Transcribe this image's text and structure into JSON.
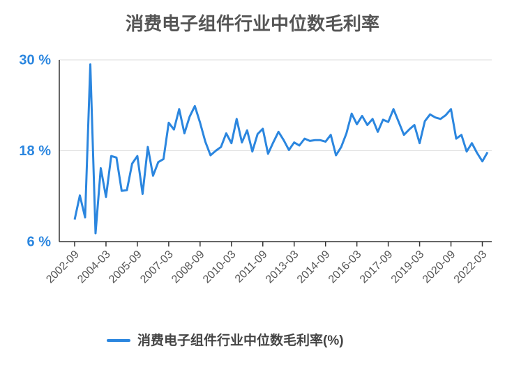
{
  "chart_data": {
    "type": "line",
    "title": "消费电子组件行业中位数毛利率",
    "categories": [
      "2002-09",
      null,
      null,
      null,
      null,
      null,
      "2004-03",
      null,
      null,
      null,
      null,
      null,
      "2005-09",
      null,
      null,
      null,
      null,
      null,
      "2007-03",
      null,
      null,
      null,
      null,
      null,
      "2008-09",
      null,
      null,
      null,
      null,
      null,
      "2010-03",
      null,
      null,
      null,
      null,
      null,
      "2011-09",
      null,
      null,
      null,
      null,
      null,
      "2013-03",
      null,
      null,
      null,
      null,
      null,
      "2014-09",
      null,
      null,
      null,
      null,
      null,
      "2016-03",
      null,
      null,
      null,
      null,
      null,
      "2017-09",
      null,
      null,
      null,
      null,
      null,
      "2019-03",
      null,
      null,
      null,
      null,
      null,
      "2020-09",
      null,
      null,
      null,
      null,
      null,
      "2022-03",
      null
    ],
    "series": [
      {
        "name": "消费电子组件行业中位数毛利率(%)",
        "color": "#2b86df",
        "values": [
          8.9,
          12.1,
          9.2,
          29.4,
          7.1,
          15.7,
          11.9,
          17.3,
          17.1,
          12.7,
          12.8,
          16.3,
          17.3,
          12.3,
          18.5,
          14.7,
          16.5,
          16.9,
          21.7,
          20.8,
          23.5,
          20.3,
          22.5,
          23.9,
          21.7,
          19.2,
          17.4,
          18.0,
          18.5,
          20.3,
          19.0,
          22.2,
          19.1,
          20.7,
          17.9,
          20.2,
          20.9,
          17.6,
          19.1,
          20.5,
          19.4,
          18.1,
          19.1,
          18.7,
          19.6,
          19.3,
          19.4,
          19.4,
          19.2,
          20.1,
          17.4,
          18.5,
          20.3,
          22.9,
          21.5,
          22.6,
          21.4,
          22.2,
          20.5,
          22.1,
          21.8,
          23.5,
          21.8,
          20.1,
          20.8,
          21.4,
          19.0,
          21.9,
          22.8,
          22.4,
          22.2,
          22.7,
          23.5,
          19.6,
          20.1,
          17.9,
          19.0,
          17.7,
          16.6,
          17.8
        ]
      }
    ],
    "ylim": [
      6,
      30
    ],
    "yticks": [
      {
        "value": 6,
        "label": "6 %"
      },
      {
        "value": 18,
        "label": "18 %"
      },
      {
        "value": 30,
        "label": "30 %"
      }
    ],
    "grid": true
  }
}
